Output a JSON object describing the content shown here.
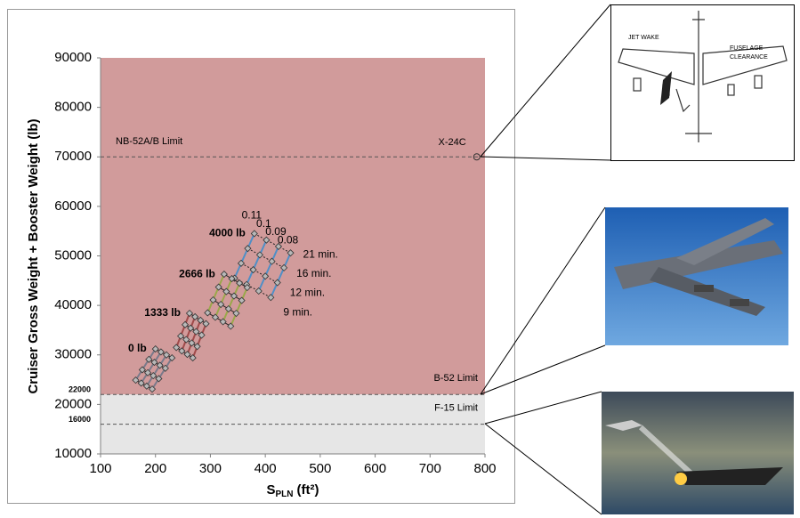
{
  "chart_data": {
    "type": "scatter",
    "ylabel": "Cruiser Gross Weight + Booster Weight (lb)",
    "xlabel": {
      "main": "S",
      "sub": "PLN",
      "unit": "(ft²)"
    },
    "xlim": [
      100,
      800
    ],
    "xticks": [
      100,
      200,
      300,
      400,
      500,
      600,
      700,
      800
    ],
    "ylim": [
      10000,
      90000
    ],
    "yticks": [
      10000,
      20000,
      30000,
      40000,
      50000,
      60000,
      70000,
      80000,
      90000
    ],
    "hlines": [
      {
        "value": 70000,
        "label": "NB-52A/B Limit"
      },
      {
        "value": 22000,
        "label": "B-52 Limit"
      },
      {
        "value": 16000,
        "label": "F-15 Limit"
      }
    ],
    "point": {
      "label": "X-24C",
      "x": 785,
      "y": 70000
    },
    "ratio_labels": [
      "0.11",
      "0.1",
      "0.09",
      "0.08"
    ],
    "time_labels": [
      "21 min.",
      "16 min.",
      "12 min.",
      "9 min."
    ],
    "groups": [
      {
        "label": "4000 lb",
        "color": "#4f8fc7",
        "lines": [
          {
            "x": [
              380,
              368,
              356,
              344
            ],
            "y": [
              54500,
              51500,
              48500,
              45500
            ]
          },
          {
            "x": [
              402,
              390,
              378,
              366
            ],
            "y": [
              53200,
              50200,
              47200,
              44200
            ]
          },
          {
            "x": [
              424,
              412,
              400,
              388
            ],
            "y": [
              51900,
              48900,
              45900,
              42900
            ]
          },
          {
            "x": [
              446,
              434,
              422,
              410
            ],
            "y": [
              50600,
              47600,
              44600,
              41600
            ]
          }
        ]
      },
      {
        "label": "2666 lb",
        "color": "#9aa84a",
        "lines": [
          {
            "x": [
              325,
              315,
              305,
              295
            ],
            "y": [
              46300,
              43700,
              41100,
              38500
            ]
          },
          {
            "x": [
              339,
              329,
              319,
              309
            ],
            "y": [
              45400,
              42800,
              40200,
              37600
            ]
          },
          {
            "x": [
              353,
              343,
              333,
              323
            ],
            "y": [
              44500,
              41900,
              39300,
              36700
            ]
          },
          {
            "x": [
              367,
              357,
              347,
              337
            ],
            "y": [
              43600,
              41000,
              38400,
              35800
            ]
          }
        ]
      },
      {
        "label": "1333 lb",
        "color": "#a04a4a",
        "lines": [
          {
            "x": [
              262,
              254,
              246,
              238
            ],
            "y": [
              38400,
              36100,
              33800,
              31500
            ]
          },
          {
            "x": [
              272,
              264,
              256,
              248
            ],
            "y": [
              37700,
              35400,
              33100,
              30800
            ]
          },
          {
            "x": [
              282,
              274,
              266,
              258
            ],
            "y": [
              37000,
              34700,
              32400,
              30100
            ]
          },
          {
            "x": [
              292,
              284,
              276,
              268
            ],
            "y": [
              36300,
              34000,
              31700,
              29400
            ]
          }
        ]
      },
      {
        "label": "0 lb",
        "color": "#7a7a8a",
        "lines": [
          {
            "x": [
              200,
              188,
              176,
              164
            ],
            "y": [
              31200,
              29100,
              27000,
              24900
            ]
          },
          {
            "x": [
              210,
              198,
              186,
              174
            ],
            "y": [
              30600,
              28500,
              26400,
              24300
            ]
          },
          {
            "x": [
              220,
              208,
              196,
              184
            ],
            "y": [
              30000,
              27900,
              25800,
              23700
            ]
          },
          {
            "x": [
              230,
              218,
              206,
              194
            ],
            "y": [
              29400,
              27300,
              25200,
              23100
            ]
          }
        ]
      }
    ]
  },
  "images": {
    "top_labels": [
      "JET WAKE",
      "FUSELAGE",
      "CLEARANCE"
    ]
  }
}
